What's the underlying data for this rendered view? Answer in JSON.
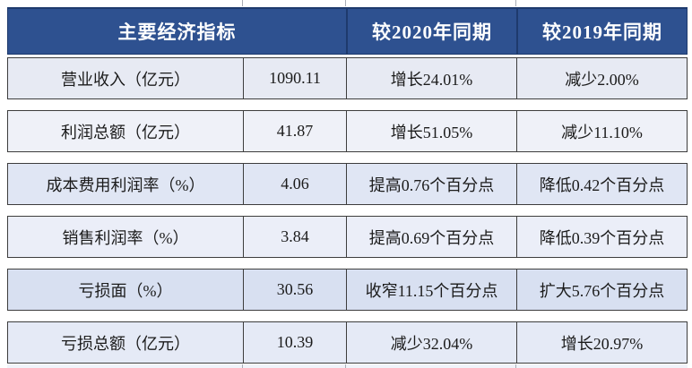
{
  "page": {
    "background": "#ffffff"
  },
  "colors": {
    "header_bg": "#2e5190",
    "header_divider": "#1e3a6d",
    "header_text": "#ffffff",
    "row_border": "#3d3d3d",
    "body_text": "#1b1b1b",
    "edge_tick": "#a9adb5"
  },
  "chart_data": {
    "type": "table",
    "title": "主要经济指标",
    "legend_position": "none",
    "header": {
      "indicator_label": "主要经济指标",
      "vs2020_label": "较2020年同期",
      "vs2019_label": "较2019年同期"
    },
    "rows": [
      {
        "label": "营业收入（亿元）",
        "value": "1090.11",
        "vs_2020": "增长24.01%",
        "vs_2019": "减少2.00%",
        "bg": "#e7eaf3"
      },
      {
        "label": "利润总额（亿元）",
        "value": "41.87",
        "vs_2020": "增长51.05%",
        "vs_2019": "减少11.10%",
        "bg": "#eff1f8"
      },
      {
        "label": "成本费用利润率（%）",
        "value": "4.06",
        "vs_2020": "提高0.76个百分点",
        "vs_2019": "降低0.42个百分点",
        "bg": "#e0e6f4"
      },
      {
        "label": "销售利润率（%）",
        "value": "3.84",
        "vs_2020": "提高0.69个百分点",
        "vs_2019": "降低0.39个百分点",
        "bg": "#ebeef8"
      },
      {
        "label": "亏损面（%）",
        "value": "30.56",
        "vs_2020": "收窄11.15个百分点",
        "vs_2019": "扩大5.76个百分点",
        "bg": "#d8e0f1"
      },
      {
        "label": "亏损总额（亿元）",
        "value": "10.39",
        "vs_2020": "减少32.04%",
        "vs_2019": "增长20.97%",
        "bg": "#e5eaf6"
      }
    ]
  }
}
